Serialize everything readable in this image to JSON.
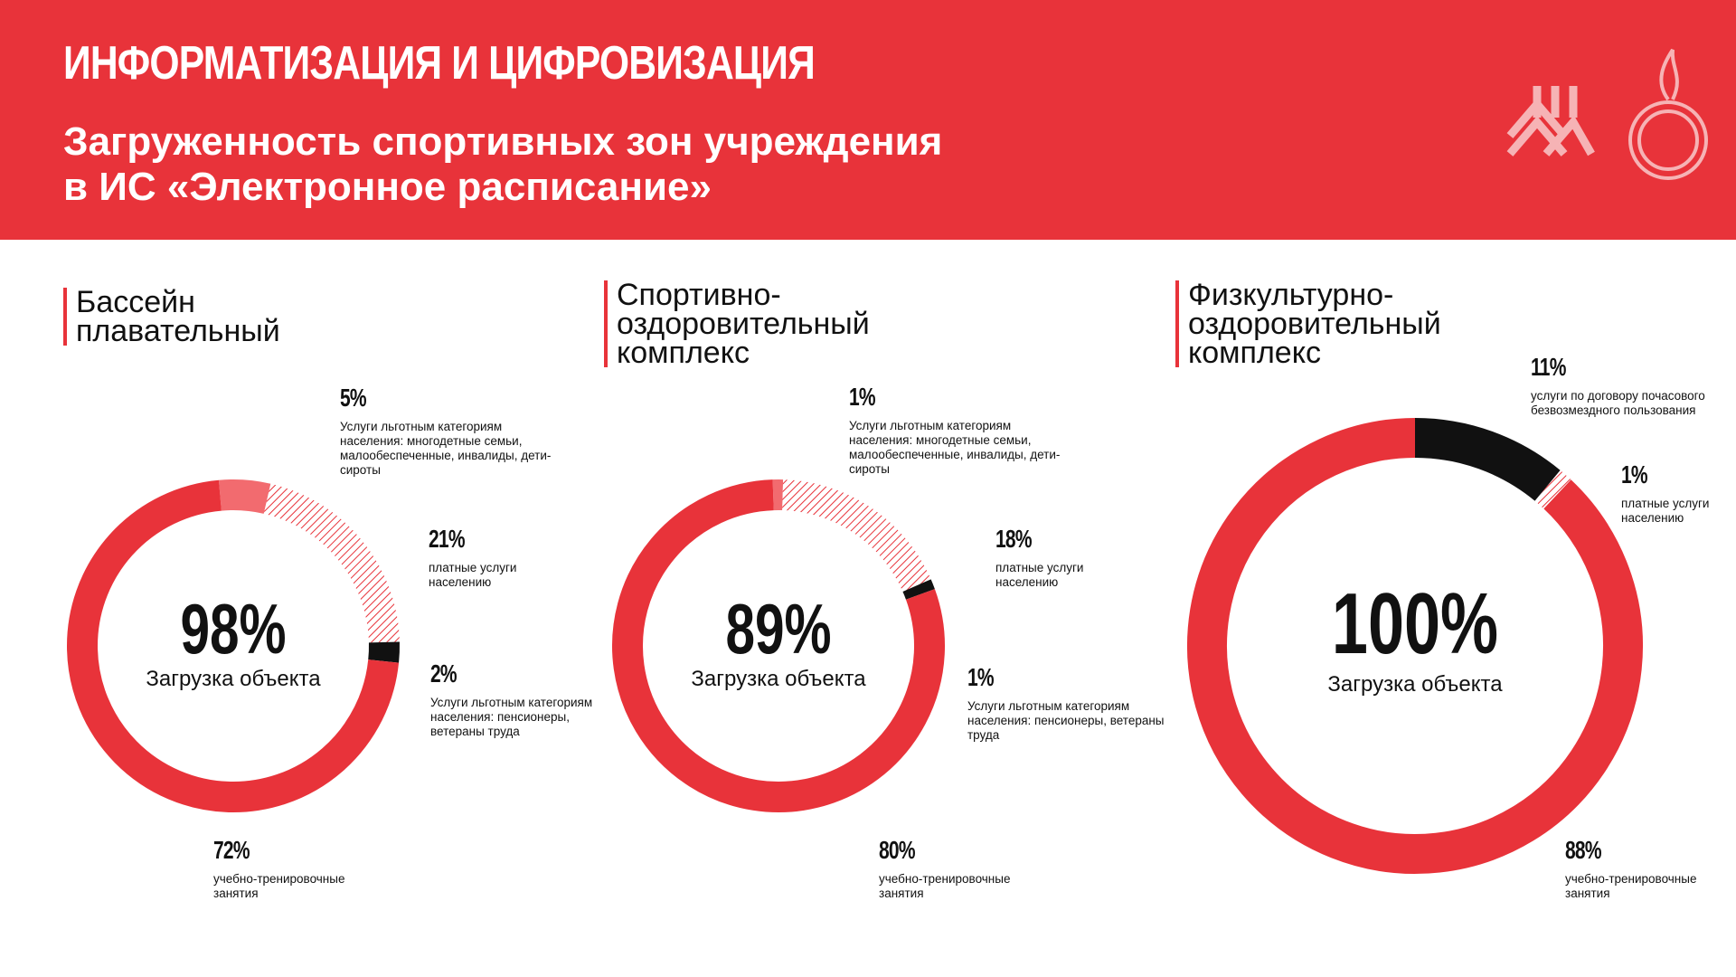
{
  "header": {
    "title": "ИНФОРМАТИЗАЦИЯ И ЦИФРОВИЗАЦИЯ",
    "subtitle": [
      "Загруженность спортивных зон учреждения",
      "в ИС «Электронное расписание»"
    ]
  },
  "chart_data": [
    {
      "type": "donut",
      "title": "Бассейн плавательный",
      "categories": [
        "Услуги льготным категориям населения: многодетные семьи, малообеспеченные, инвалиды, дети-сироты",
        "платные услуги населению",
        "Услуги льготным категориям населения: пенсионеры, ветераны труда",
        "учебно-тренировочные занятия"
      ],
      "values": [
        5,
        21,
        2,
        72
      ],
      "value_labels": [
        "5%",
        "21%",
        "2%",
        "72%"
      ],
      "colors": [
        "#f26b6f",
        "#e8333a",
        "#111111",
        "#e8333a"
      ],
      "hatched": [
        false,
        true,
        false,
        false
      ],
      "total": 98,
      "total_label": "98%",
      "center_label": "Загрузка объекта"
    },
    {
      "type": "donut",
      "title": "Спортивно-оздоровительный комплекс",
      "categories": [
        "Услуги льготным категориям населения: многодетные семьи, малообеспеченные, инвалиды, дети-сироты",
        "платные услуги населению",
        "Услуги льготным категориям населения: пенсионеры, ветераны труда",
        "учебно-тренировочные занятия"
      ],
      "values": [
        1,
        18,
        1,
        80
      ],
      "value_labels": [
        "1%",
        "18%",
        "1%",
        "80%"
      ],
      "colors": [
        "#f26b6f",
        "#e8333a",
        "#111111",
        "#e8333a"
      ],
      "hatched": [
        false,
        true,
        false,
        false
      ],
      "total": 89,
      "total_label": "89%",
      "center_label": "Загрузка объекта"
    },
    {
      "type": "donut",
      "title": "Физкультурно-оздоровительный комплекс",
      "categories": [
        "услуги по договору почасового безвозмездного пользования",
        "платные услуги населению",
        "учебно-тренировочные занятия"
      ],
      "values": [
        11,
        1,
        88
      ],
      "value_labels": [
        "11%",
        "1%",
        "88%"
      ],
      "colors": [
        "#111111",
        "#e8333a",
        "#e8333a"
      ],
      "hatched": [
        false,
        true,
        false
      ],
      "total": 100,
      "total_label": "100%",
      "center_label": "Загрузка объекта"
    }
  ]
}
